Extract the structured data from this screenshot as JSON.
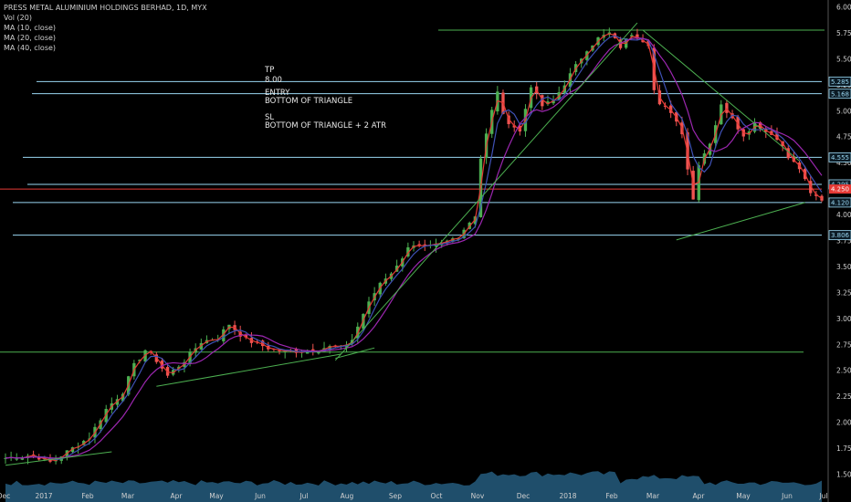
{
  "header": {
    "title": "PRESS METAL ALUMINIUM HOLDINGS BERHAD, 1D, MYX",
    "indicators": [
      "Vol (20)",
      "MA (10, close)",
      "MA (20, close)",
      "MA (40, close)"
    ]
  },
  "notes": {
    "tp_label": "TP",
    "tp_value": "8.00",
    "entry_label": "ENTRY",
    "entry_value": "BOTTOM OF TRIANGLE",
    "sl_label": "SL",
    "sl_value": "BOTTOM OF TRIANGLE + 2 ATR"
  },
  "colors": {
    "background": "#000000",
    "candle_up": "#4caf50",
    "candle_down": "#ef5350",
    "ma10": "#e53935",
    "ma20": "#3f51b5",
    "ma40": "#9c27b0",
    "trendline": "#4caf50",
    "level_line": "#9ad7f2",
    "current_price": "#e53935",
    "volume": "#1f4e6b"
  },
  "chart_data": {
    "type": "candlestick",
    "title": "PRESS METAL ALUMINIUM HOLDINGS BERHAD, 1D, MYX",
    "xlabel": "",
    "ylabel": "",
    "ylim": [
      1.45,
      6.05
    ],
    "x_ticks": [
      "Dec",
      "2017",
      "Feb",
      "Mar",
      "Apr",
      "May",
      "Jun",
      "Jul",
      "Aug",
      "Sep",
      "Oct",
      "Nov",
      "Dec",
      "2018",
      "Feb",
      "Mar",
      "Apr",
      "May",
      "Jun",
      "Jul"
    ],
    "y_ticks": [
      "6.000",
      "5.750",
      "5.500",
      "5.250",
      "5.000",
      "4.750",
      "4.500",
      "4.250",
      "4.000",
      "3.750",
      "3.500",
      "3.250",
      "3.000",
      "2.750",
      "2.500",
      "2.250",
      "2.000",
      "1.750",
      "1.500"
    ],
    "price_path": [
      [
        0,
        1.66
      ],
      [
        5,
        1.69
      ],
      [
        8,
        1.62
      ],
      [
        11,
        1.72
      ],
      [
        15,
        1.86
      ],
      [
        18,
        2.13
      ],
      [
        21,
        2.3
      ],
      [
        23,
        2.55
      ],
      [
        25,
        2.7
      ],
      [
        27,
        2.6
      ],
      [
        29,
        2.45
      ],
      [
        32,
        2.6
      ],
      [
        35,
        2.78
      ],
      [
        38,
        2.82
      ],
      [
        40,
        2.95
      ],
      [
        43,
        2.8
      ],
      [
        47,
        2.72
      ],
      [
        50,
        2.68
      ],
      [
        54,
        2.7
      ],
      [
        58,
        2.73
      ],
      [
        60,
        2.72
      ],
      [
        62,
        2.8
      ],
      [
        64,
        3.05
      ],
      [
        67,
        3.35
      ],
      [
        70,
        3.5
      ],
      [
        72,
        3.7
      ],
      [
        75,
        3.68
      ],
      [
        78,
        3.72
      ],
      [
        81,
        3.8
      ],
      [
        84,
        4.0
      ],
      [
        85,
        4.55
      ],
      [
        87,
        5.0
      ],
      [
        88,
        5.2
      ],
      [
        89,
        4.95
      ],
      [
        92,
        4.8
      ],
      [
        94,
        5.25
      ],
      [
        96,
        5.05
      ],
      [
        98,
        5.1
      ],
      [
        101,
        5.35
      ],
      [
        104,
        5.6
      ],
      [
        106,
        5.7
      ],
      [
        108,
        5.75
      ],
      [
        110,
        5.62
      ],
      [
        112,
        5.75
      ],
      [
        113,
        5.72
      ],
      [
        115,
        5.65
      ],
      [
        116,
        5.2
      ],
      [
        117,
        5.05
      ],
      [
        119,
        5.0
      ],
      [
        121,
        4.8
      ],
      [
        122,
        4.45
      ],
      [
        123,
        4.15
      ],
      [
        124,
        4.5
      ],
      [
        126,
        4.7
      ],
      [
        128,
        5.05
      ],
      [
        130,
        4.95
      ],
      [
        132,
        4.75
      ],
      [
        134,
        4.9
      ],
      [
        136,
        4.8
      ],
      [
        138,
        4.75
      ],
      [
        140,
        4.55
      ],
      [
        142,
        4.45
      ],
      [
        144,
        4.2
      ],
      [
        146,
        4.15
      ]
    ],
    "volume_baseline": "low",
    "moving_averages": [
      "MA (10, close)",
      "MA (20, close)",
      "MA (40, close)"
    ],
    "horizontal_levels": [
      {
        "value": 5.78,
        "style": "green"
      },
      {
        "value": 5.285,
        "label": "5.285",
        "style": "blue"
      },
      {
        "value": 5.168,
        "label": "5.168",
        "style": "blue"
      },
      {
        "value": 4.555,
        "label": "4.555",
        "style": "blue"
      },
      {
        "value": 4.295,
        "label": "4.295",
        "style": "blue"
      },
      {
        "value": 4.25,
        "label": "4.250",
        "style": "current"
      },
      {
        "value": 4.12,
        "label": "4.120",
        "style": "blue"
      },
      {
        "value": 3.806,
        "label": "3.806",
        "style": "blue"
      },
      {
        "value": 2.68,
        "style": "green"
      }
    ],
    "trendlines": [
      {
        "from": [
          0,
          1.59
        ],
        "to": [
          19,
          1.72
        ]
      },
      {
        "from": [
          27,
          2.35
        ],
        "to": [
          60,
          2.66
        ]
      },
      {
        "from": [
          59,
          2.62
        ],
        "to": [
          66,
          2.72
        ]
      },
      {
        "from": [
          59,
          2.6
        ],
        "to": [
          113,
          5.85
        ]
      },
      {
        "from": [
          114,
          5.78
        ],
        "to": [
          142,
          4.52
        ]
      },
      {
        "from": [
          120,
          3.76
        ],
        "to": [
          143,
          4.12
        ]
      }
    ]
  }
}
